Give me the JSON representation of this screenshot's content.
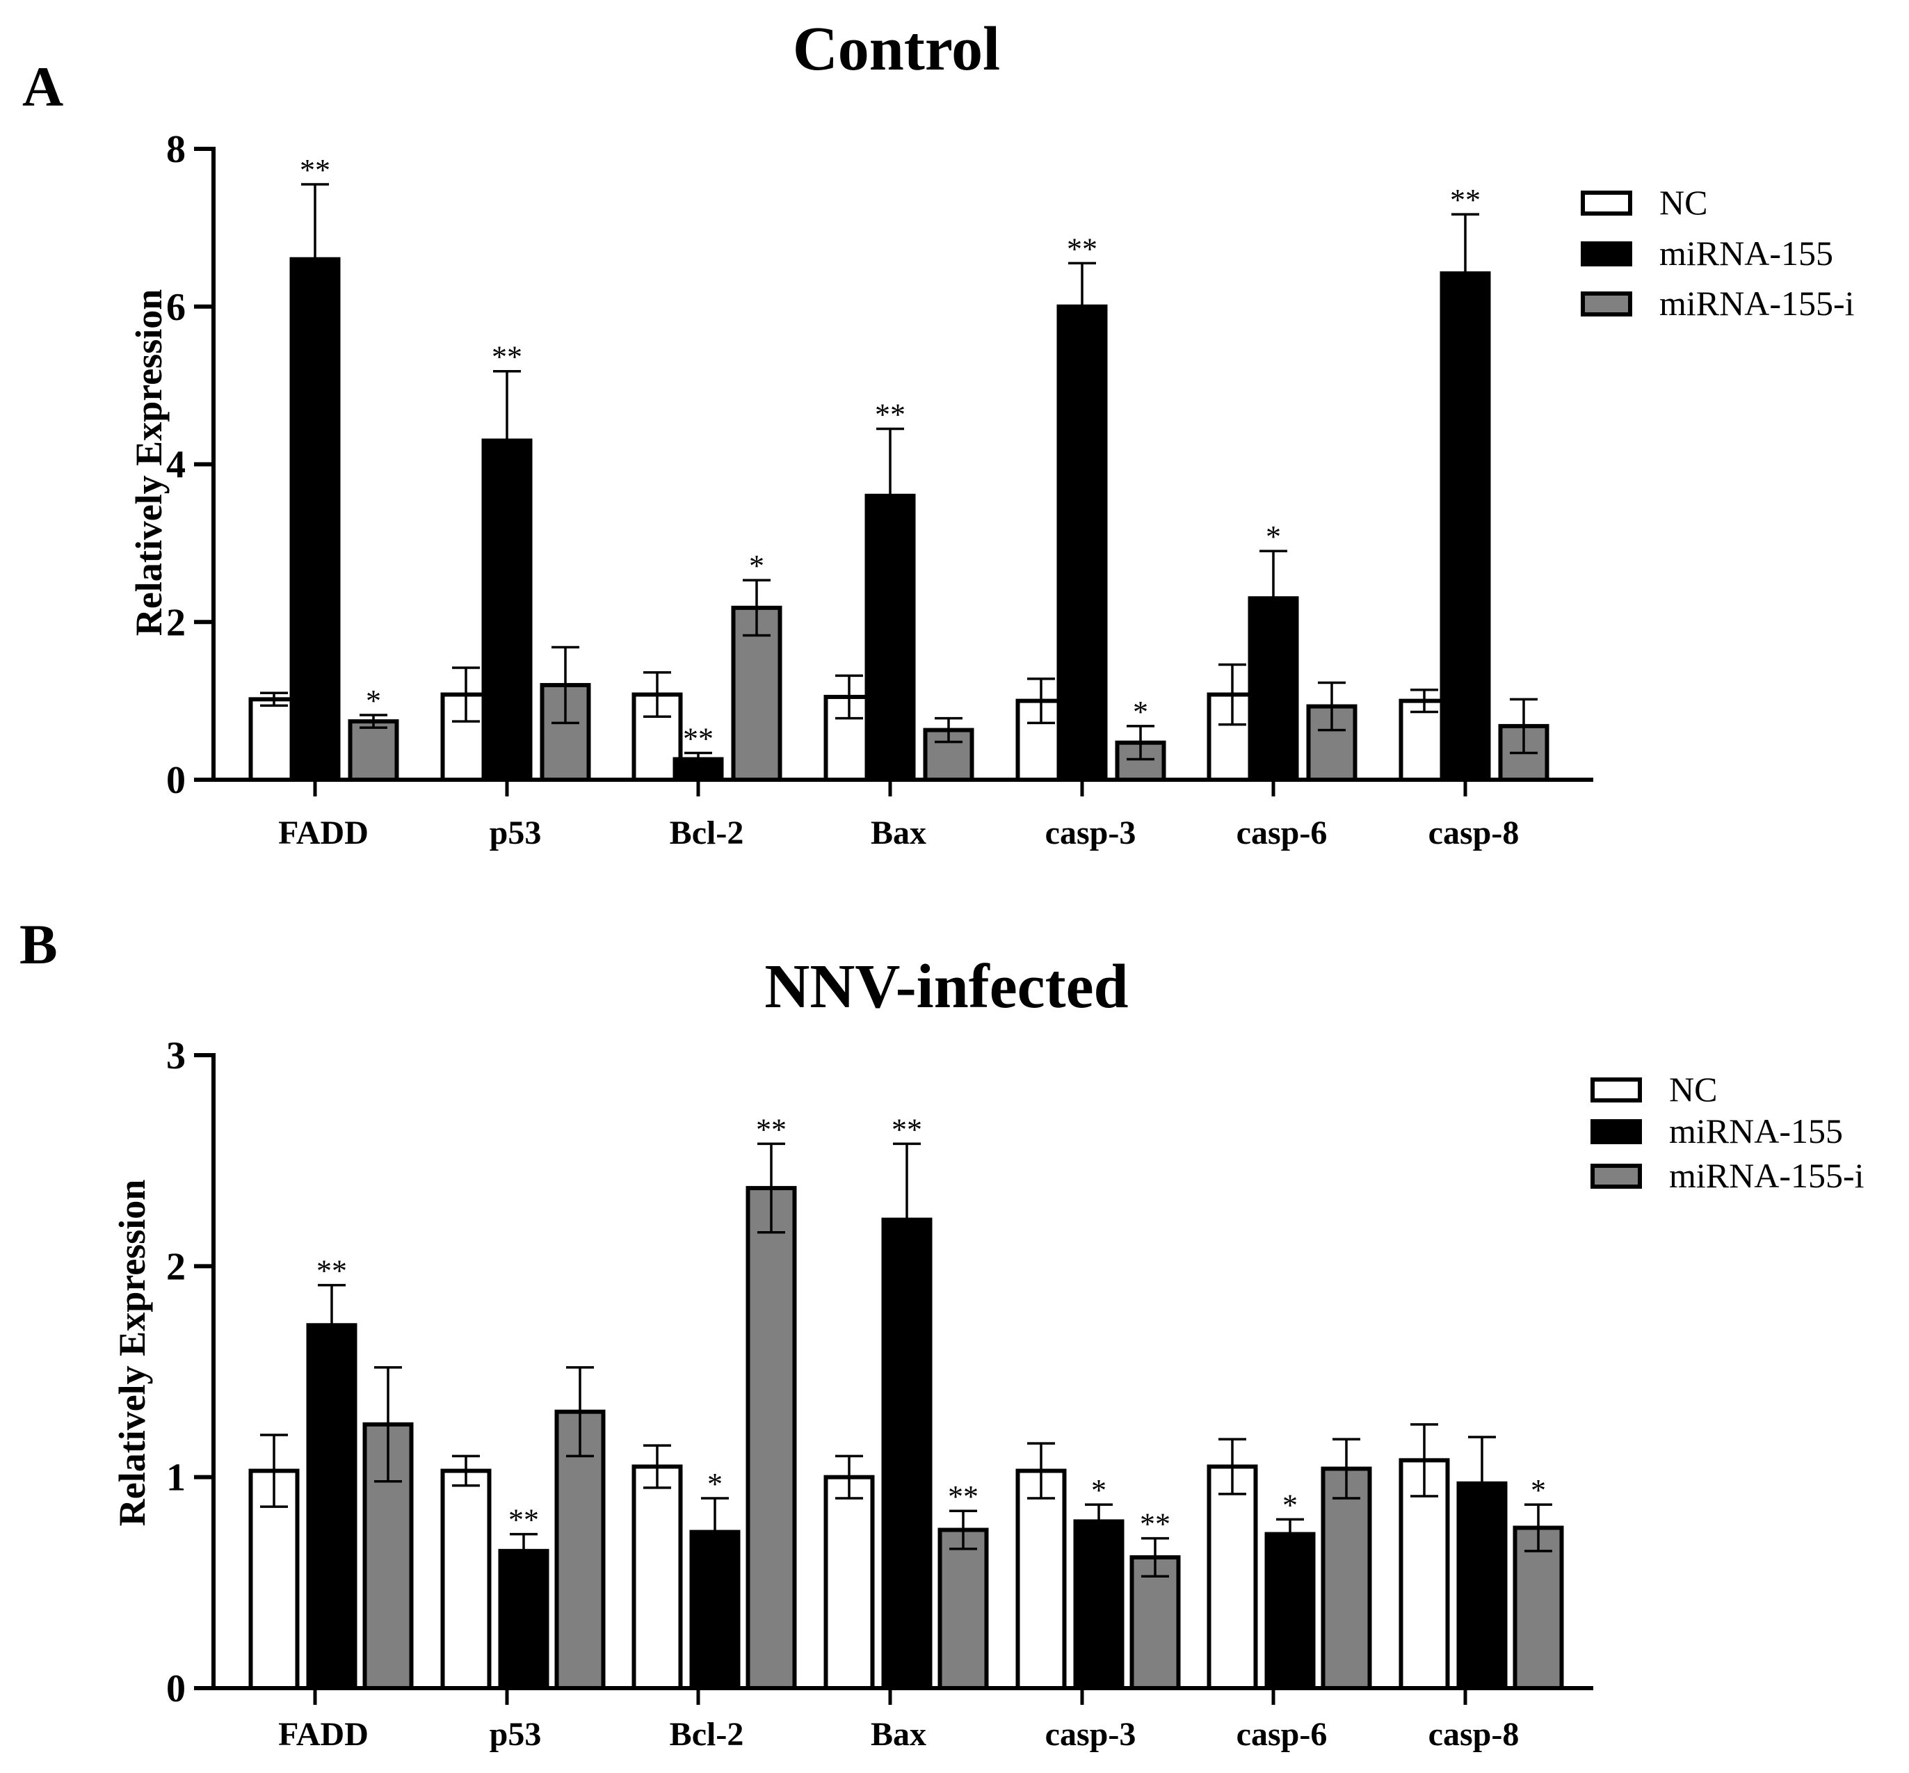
{
  "chart_data": [
    {
      "type": "bar",
      "panel_label": "A",
      "title": "Control",
      "ylabel": "Relatively Expression",
      "xlabel": "",
      "ylim": [
        0,
        8
      ],
      "yticks": [
        "0",
        "2",
        "4",
        "6",
        "8"
      ],
      "categories": [
        "FADD",
        "p53",
        "Bcl-2",
        "Bax",
        "casp-3",
        "casp-6",
        "casp-8"
      ],
      "legend": {
        "position": "top-right",
        "entries": [
          "NC",
          "miRNA-155",
          "miRNA-155-i"
        ]
      },
      "series": [
        {
          "name": "NC",
          "color": "#ffffff",
          "values": [
            1.02,
            1.08,
            1.08,
            1.05,
            1.0,
            1.08,
            1.0
          ],
          "errors": [
            0.08,
            0.34,
            0.28,
            0.27,
            0.28,
            0.38,
            0.14
          ],
          "significance": [
            "",
            "",
            "",
            "",
            "",
            "",
            ""
          ]
        },
        {
          "name": "miRNA-155",
          "color": "#000000",
          "values": [
            6.6,
            4.3,
            0.26,
            3.6,
            6.0,
            2.3,
            6.42
          ],
          "errors": [
            0.95,
            0.88,
            0.08,
            0.85,
            0.55,
            0.6,
            0.75
          ],
          "significance": [
            "**",
            "**",
            "**",
            "**",
            "**",
            "*",
            "**"
          ]
        },
        {
          "name": "miRNA-155-i",
          "color": "#808080",
          "values": [
            0.74,
            1.2,
            2.18,
            0.63,
            0.47,
            0.93,
            0.68
          ],
          "errors": [
            0.08,
            0.48,
            0.35,
            0.15,
            0.21,
            0.3,
            0.34
          ],
          "significance": [
            "*",
            "",
            "*",
            "",
            "*",
            "",
            ""
          ]
        }
      ]
    },
    {
      "type": "bar",
      "panel_label": "B",
      "title": "NNV-infected",
      "ylabel": "Relatively Expression",
      "xlabel": "",
      "ylim": [
        0,
        3
      ],
      "yticks": [
        "0",
        "1",
        "2",
        "3"
      ],
      "categories": [
        "FADD",
        "p53",
        "Bcl-2",
        "Bax",
        "casp-3",
        "casp-6",
        "casp-8"
      ],
      "legend": {
        "position": "top-right",
        "entries": [
          "NC",
          "miRNA-155",
          "miRNA-155-i"
        ]
      },
      "series": [
        {
          "name": "NC",
          "color": "#ffffff",
          "values": [
            1.03,
            1.03,
            1.05,
            1.0,
            1.03,
            1.05,
            1.08
          ],
          "errors": [
            0.17,
            0.07,
            0.1,
            0.1,
            0.13,
            0.13,
            0.17
          ],
          "significance": [
            "",
            "",
            "",
            "",
            "",
            "",
            ""
          ]
        },
        {
          "name": "miRNA-155",
          "color": "#000000",
          "values": [
            1.72,
            0.65,
            0.74,
            2.22,
            0.79,
            0.73,
            0.97
          ],
          "errors": [
            0.19,
            0.08,
            0.16,
            0.36,
            0.08,
            0.07,
            0.22
          ],
          "significance": [
            "**",
            "**",
            "*",
            "**",
            "*",
            "*",
            ""
          ]
        },
        {
          "name": "miRNA-155-i",
          "color": "#808080",
          "values": [
            1.25,
            1.31,
            2.37,
            0.75,
            0.62,
            1.04,
            0.76
          ],
          "errors": [
            0.27,
            0.21,
            0.21,
            0.09,
            0.09,
            0.14,
            0.11
          ],
          "significance": [
            "",
            "",
            "**",
            "**",
            "**",
            "",
            "*"
          ]
        }
      ]
    }
  ]
}
